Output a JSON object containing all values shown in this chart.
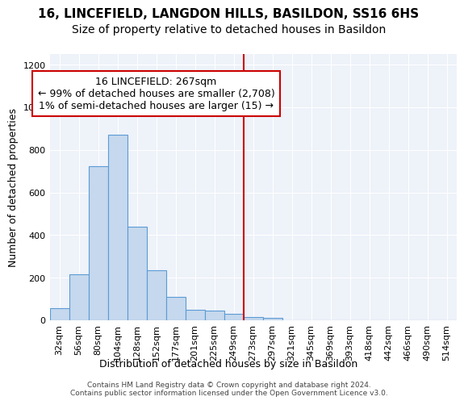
{
  "title_line1": "16, LINCEFIELD, LANGDON HILLS, BASILDON, SS16 6HS",
  "title_line2": "Size of property relative to detached houses in Basildon",
  "xlabel": "Distribution of detached houses by size in Basildon",
  "ylabel": "Number of detached properties",
  "footnote": "Contains HM Land Registry data © Crown copyright and database right 2024.\nContains public sector information licensed under the Open Government Licence v3.0.",
  "annotation_title": "16 LINCEFIELD: 267sqm",
  "annotation_line2": "← 99% of detached houses are smaller (2,708)",
  "annotation_line3": "1% of semi-detached houses are larger (15) →",
  "bin_labels": [
    "32sqm",
    "56sqm",
    "80sqm",
    "104sqm",
    "128sqm",
    "152sqm",
    "177sqm",
    "201sqm",
    "225sqm",
    "249sqm",
    "273sqm",
    "297sqm",
    "321sqm",
    "345sqm",
    "369sqm",
    "393sqm",
    "418sqm",
    "442sqm",
    "466sqm",
    "490sqm",
    "514sqm"
  ],
  "bar_heights": [
    55,
    215,
    725,
    870,
    440,
    235,
    110,
    50,
    45,
    30,
    15,
    10,
    0,
    0,
    0,
    0,
    0,
    0,
    0,
    0,
    0
  ],
  "bar_color": "#c5d8ed",
  "bar_edge_color": "#5b9bd5",
  "vline_x_index": 10,
  "vline_color": "#cc0000",
  "ylim": [
    0,
    1250
  ],
  "yticks": [
    0,
    200,
    400,
    600,
    800,
    1000,
    1200
  ],
  "background_color": "#eef2f9",
  "grid_color": "#ffffff",
  "title_fontsize": 11,
  "subtitle_fontsize": 10,
  "annotation_fontsize": 9,
  "axis_fontsize": 9,
  "tick_fontsize": 8
}
